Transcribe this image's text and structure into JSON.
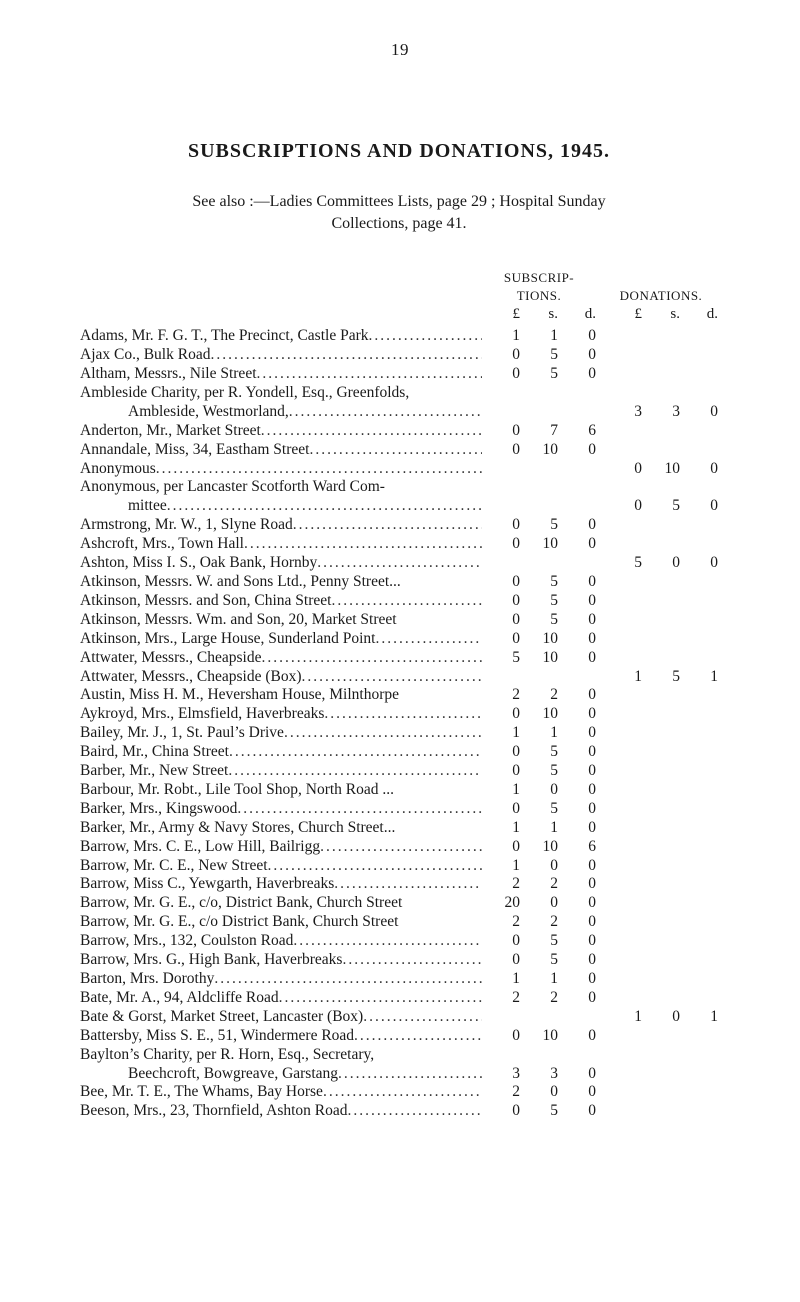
{
  "page_number": "19",
  "title": "SUBSCRIPTIONS AND DONATIONS, 1945.",
  "subline": "See also :—Ladies Committees Lists, page 29 ;   Hospital Sunday\nCollections, page 41.",
  "col_headers": {
    "sub_line1": "SUBSCRIP-",
    "sub_line2": "TIONS.",
    "don": "DONATIONS."
  },
  "unit_headers": [
    "£",
    "s.",
    "d.",
    "£",
    "s.",
    "d."
  ],
  "rows": [
    {
      "name": "Adams, Mr. F. G. T., The Precinct, Castle Park",
      "leader": true,
      "sub": [
        "1",
        "1",
        "0"
      ],
      "don": [
        "",
        "",
        ""
      ]
    },
    {
      "name": "Ajax Co., Bulk Road",
      "leader": true,
      "sub": [
        "0",
        "5",
        "0"
      ],
      "don": [
        "",
        "",
        ""
      ]
    },
    {
      "name": "Altham, Messrs., Nile Street",
      "leader": true,
      "sub": [
        "0",
        "5",
        "0"
      ],
      "don": [
        "",
        "",
        ""
      ]
    },
    {
      "name": "Ambleside Charity, per R. Yondell, Esq., Greenfolds,",
      "leader": false,
      "sub": [
        "",
        "",
        ""
      ],
      "don": [
        "",
        "",
        ""
      ]
    },
    {
      "name": "Ambleside, Westmorland,",
      "indent": 1,
      "leader": true,
      "sub": [
        "",
        "",
        ""
      ],
      "don": [
        "3",
        "3",
        "0"
      ]
    },
    {
      "name": "Anderton, Mr., Market Street",
      "leader": true,
      "sub": [
        "0",
        "7",
        "6"
      ],
      "don": [
        "",
        "",
        ""
      ]
    },
    {
      "name": "Annandale, Miss, 34, Eastham Street",
      "leader": true,
      "sub": [
        "0",
        "10",
        "0"
      ],
      "don": [
        "",
        "",
        ""
      ]
    },
    {
      "name": "Anonymous",
      "leader": true,
      "sub": [
        "",
        "",
        ""
      ],
      "don": [
        "0",
        "10",
        "0"
      ]
    },
    {
      "name": "Anonymous, per Lancaster Scotforth Ward Com-",
      "leader": false,
      "sub": [
        "",
        "",
        ""
      ],
      "don": [
        "",
        "",
        ""
      ]
    },
    {
      "name": "mittee",
      "indent": 1,
      "leader": true,
      "sub": [
        "",
        "",
        ""
      ],
      "don": [
        "0",
        "5",
        "0"
      ]
    },
    {
      "name": "Armstrong, Mr. W., 1, Slyne Road",
      "leader": true,
      "sub": [
        "0",
        "5",
        "0"
      ],
      "don": [
        "",
        "",
        ""
      ]
    },
    {
      "name": "Ashcroft, Mrs., Town Hall",
      "leader": true,
      "sub": [
        "0",
        "10",
        "0"
      ],
      "don": [
        "",
        "",
        ""
      ]
    },
    {
      "name": "Ashton, Miss I. S., Oak Bank, Hornby",
      "leader": true,
      "sub": [
        "",
        "",
        ""
      ],
      "don": [
        "5",
        "0",
        "0"
      ]
    },
    {
      "name": "Atkinson, Messrs. W. and Sons Ltd., Penny Street...",
      "leader": false,
      "sub": [
        "0",
        "5",
        "0"
      ],
      "don": [
        "",
        "",
        ""
      ]
    },
    {
      "name": "Atkinson, Messrs. and Son, China Street",
      "leader": true,
      "sub": [
        "0",
        "5",
        "0"
      ],
      "don": [
        "",
        "",
        ""
      ]
    },
    {
      "name": "Atkinson, Messrs. Wm. and Son, 20, Market Street",
      "leader": false,
      "sub": [
        "0",
        "5",
        "0"
      ],
      "don": [
        "",
        "",
        ""
      ]
    },
    {
      "name": "Atkinson, Mrs., Large House, Sunderland Point",
      "leader": true,
      "sub": [
        "0",
        "10",
        "0"
      ],
      "don": [
        "",
        "",
        ""
      ]
    },
    {
      "name": "Attwater, Messrs., Cheapside",
      "leader": true,
      "sub": [
        "5",
        "10",
        "0"
      ],
      "don": [
        "",
        "",
        ""
      ]
    },
    {
      "name": "Attwater, Messrs., Cheapside (Box)",
      "leader": true,
      "sub": [
        "",
        "",
        ""
      ],
      "don": [
        "1",
        "5",
        "1"
      ]
    },
    {
      "name": "Austin, Miss H. M., Heversham House, Milnthorpe",
      "leader": false,
      "sub": [
        "2",
        "2",
        "0"
      ],
      "don": [
        "",
        "",
        ""
      ]
    },
    {
      "name": "Aykroyd, Mrs., Elmsfield, Haverbreaks",
      "leader": true,
      "sub": [
        "0",
        "10",
        "0"
      ],
      "don": [
        "",
        "",
        ""
      ]
    },
    {
      "name": "Bailey, Mr. J., 1, St. Paul’s Drive",
      "leader": true,
      "sub": [
        "1",
        "1",
        "0"
      ],
      "don": [
        "",
        "",
        ""
      ]
    },
    {
      "name": "Baird, Mr., China Street",
      "leader": true,
      "sub": [
        "0",
        "5",
        "0"
      ],
      "don": [
        "",
        "",
        ""
      ]
    },
    {
      "name": "Barber, Mr., New Street",
      "leader": true,
      "sub": [
        "0",
        "5",
        "0"
      ],
      "don": [
        "",
        "",
        ""
      ]
    },
    {
      "name": "Barbour, Mr. Robt., Lile Tool Shop, North Road   ...",
      "leader": false,
      "sub": [
        "1",
        "0",
        "0"
      ],
      "don": [
        "",
        "",
        ""
      ]
    },
    {
      "name": "Barker, Mrs., Kingswood",
      "leader": true,
      "sub": [
        "0",
        "5",
        "0"
      ],
      "don": [
        "",
        "",
        ""
      ]
    },
    {
      "name": "Barker, Mr., Army & Navy Stores, Church Street...",
      "leader": false,
      "sub": [
        "1",
        "1",
        "0"
      ],
      "don": [
        "",
        "",
        ""
      ]
    },
    {
      "name": "Barrow, Mrs. C. E., Low Hill, Bailrigg",
      "leader": true,
      "sub": [
        "0",
        "10",
        "6"
      ],
      "don": [
        "",
        "",
        ""
      ]
    },
    {
      "name": "Barrow, Mr. C. E., New Street",
      "leader": true,
      "sub": [
        "1",
        "0",
        "0"
      ],
      "don": [
        "",
        "",
        ""
      ]
    },
    {
      "name": "Barrow, Miss C., Yewgarth, Haverbreaks",
      "leader": true,
      "sub": [
        "2",
        "2",
        "0"
      ],
      "don": [
        "",
        "",
        ""
      ]
    },
    {
      "name": "Barrow, Mr. G. E., c/o, District Bank, Church Street",
      "leader": false,
      "sub": [
        "20",
        "0",
        "0"
      ],
      "don": [
        "",
        "",
        ""
      ]
    },
    {
      "name": "Barrow, Mr. G. E., c/o District Bank, Church Street",
      "leader": false,
      "sub": [
        "2",
        "2",
        "0"
      ],
      "don": [
        "",
        "",
        ""
      ]
    },
    {
      "name": "Barrow, Mrs., 132, Coulston Road",
      "leader": true,
      "sub": [
        "0",
        "5",
        "0"
      ],
      "don": [
        "",
        "",
        ""
      ]
    },
    {
      "name": "Barrow, Mrs. G., High Bank, Haverbreaks",
      "leader": true,
      "sub": [
        "0",
        "5",
        "0"
      ],
      "don": [
        "",
        "",
        ""
      ]
    },
    {
      "name": "Barton, Mrs. Dorothy",
      "leader": true,
      "sub": [
        "1",
        "1",
        "0"
      ],
      "don": [
        "",
        "",
        ""
      ]
    },
    {
      "name": "Bate, Mr. A., 94, Aldcliffe Road",
      "leader": true,
      "sub": [
        "2",
        "2",
        "0"
      ],
      "don": [
        "",
        "",
        ""
      ]
    },
    {
      "name": "Bate & Gorst, Market Street, Lancaster (Box)",
      "leader": true,
      "sub": [
        "",
        "",
        ""
      ],
      "don": [
        "1",
        "0",
        "1"
      ]
    },
    {
      "name": "Battersby, Miss S. E., 51, Windermere Road",
      "leader": true,
      "sub": [
        "0",
        "10",
        "0"
      ],
      "don": [
        "",
        "",
        ""
      ]
    },
    {
      "name": "Baylton’s Charity, per R. Horn, Esq., Secretary,",
      "leader": false,
      "sub": [
        "",
        "",
        ""
      ],
      "don": [
        "",
        "",
        ""
      ]
    },
    {
      "name": "Beechcroft, Bowgreave, Garstang",
      "indent": 1,
      "leader": true,
      "sub": [
        "3",
        "3",
        "0"
      ],
      "don": [
        "",
        "",
        ""
      ]
    },
    {
      "name": "Bee, Mr. T. E., The Whams, Bay Horse",
      "leader": true,
      "sub": [
        "2",
        "0",
        "0"
      ],
      "don": [
        "",
        "",
        ""
      ]
    },
    {
      "name": "Beeson, Mrs., 23, Thornfield, Ashton Road",
      "leader": true,
      "sub": [
        "0",
        "5",
        "0"
      ],
      "don": [
        "",
        "",
        ""
      ]
    }
  ]
}
